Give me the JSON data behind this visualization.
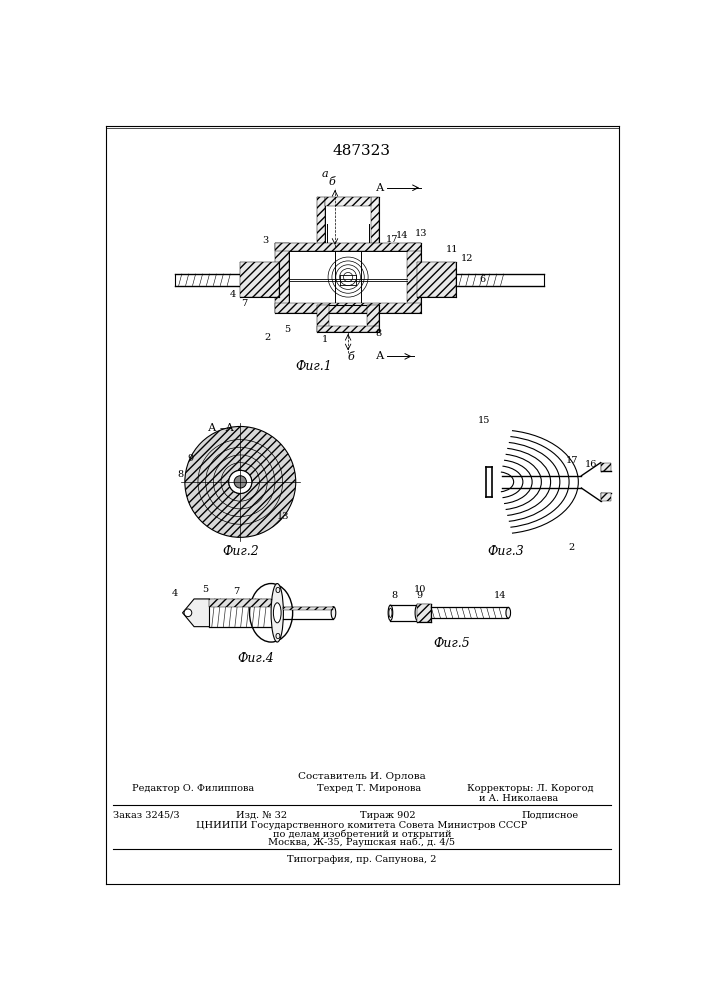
{
  "title": "487323",
  "title_fontsize": 11,
  "bg_color": "#ffffff",
  "fig_caption_composer": "Составитель И. Орлова",
  "footer_line1_col1": "Редактор О. Филиппова",
  "footer_line1_col2": "Техред Т. Миронова",
  "footer_line1_col3": "Корректоры: Л. Корогод",
  "footer_line1_col3b": "и А. Николаева",
  "footer_line2_col1": "Заказ 3245/3",
  "footer_line2_col2": "Изд. № 32",
  "footer_line2_col3": "Тираж 902",
  "footer_line2_col4": "Подписное",
  "footer_line3": "ЦНИИПИ Государственного комитета Совета Министров СССР",
  "footer_line4": "по делам изобретений и открытий",
  "footer_line5": "Москва, Ж-35, Раушская наб., д. 4/5",
  "footer_line6": "Типография, пр. Сапунова, 2",
  "fig1_label": "Фиг.1",
  "fig2_label": "Фиг.2",
  "fig3_label": "Фиг.3",
  "fig4_label": "Фиг.4",
  "fig5_label": "Фиг.5",
  "line_color": "#000000"
}
